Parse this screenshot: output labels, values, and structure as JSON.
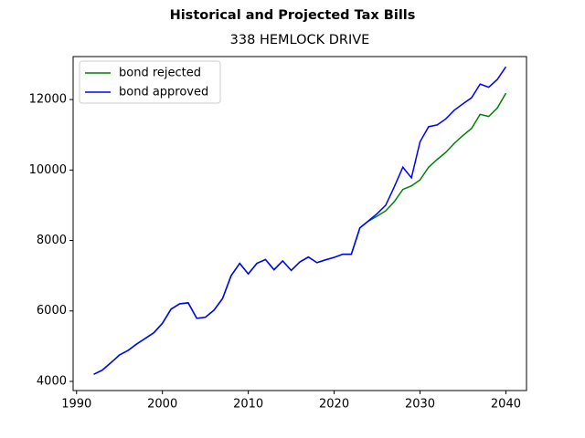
{
  "chart_data": {
    "type": "line",
    "title": "Historical and Projected Tax Bills",
    "subtitle": "338 HEMLOCK DRIVE",
    "x": [
      1992,
      1993,
      1994,
      1995,
      1996,
      1997,
      1998,
      1999,
      2000,
      2001,
      2002,
      2003,
      2004,
      2005,
      2006,
      2007,
      2008,
      2009,
      2010,
      2011,
      2012,
      2013,
      2014,
      2015,
      2016,
      2017,
      2018,
      2019,
      2020,
      2021,
      2022,
      2023,
      2024,
      2025,
      2026,
      2027,
      2028,
      2029,
      2030,
      2031,
      2032,
      2033,
      2034,
      2035,
      2036,
      2037,
      2038,
      2039,
      2040
    ],
    "series": [
      {
        "name": "bond rejected",
        "color": "#008000",
        "values": [
          4200,
          4320,
          4530,
          4750,
          4880,
          5060,
          5220,
          5380,
          5650,
          6050,
          6200,
          6230,
          5790,
          5820,
          6020,
          6350,
          7000,
          7350,
          7050,
          7350,
          7460,
          7170,
          7420,
          7150,
          7390,
          7530,
          7370,
          7450,
          7520,
          7610,
          7610,
          8360,
          8550,
          8690,
          8840,
          9100,
          9450,
          9550,
          9720,
          10080,
          10300,
          10500,
          10760,
          10980,
          11180,
          11580,
          11520,
          11760,
          12180
        ]
      },
      {
        "name": "bond approved",
        "color": "#0000ff",
        "values": [
          4200,
          4320,
          4530,
          4750,
          4880,
          5060,
          5220,
          5380,
          5650,
          6050,
          6200,
          6230,
          5790,
          5820,
          6020,
          6350,
          7000,
          7350,
          7050,
          7350,
          7460,
          7170,
          7420,
          7150,
          7390,
          7530,
          7370,
          7450,
          7520,
          7610,
          7610,
          8360,
          8560,
          8760,
          9000,
          9520,
          10080,
          9780,
          10800,
          11230,
          11280,
          11450,
          11700,
          11880,
          12050,
          12440,
          12350,
          12570,
          12930
        ]
      }
    ],
    "xlim": [
      1989.6,
      2042.4
    ],
    "ylim": [
      3740,
      13220
    ],
    "xticks": [
      1990,
      2000,
      2010,
      2020,
      2030,
      2040
    ],
    "yticks": [
      4000,
      6000,
      8000,
      10000,
      12000
    ],
    "legend": "upper left"
  }
}
